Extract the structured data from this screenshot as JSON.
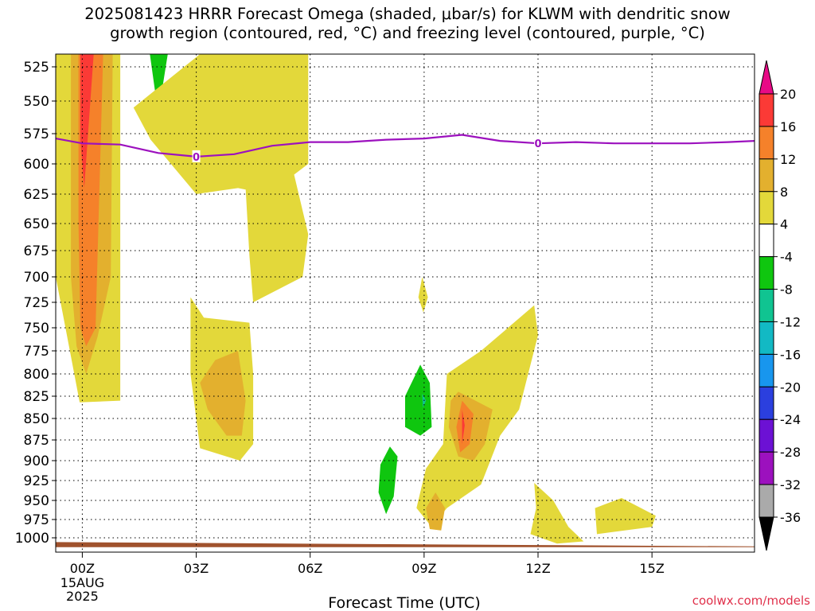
{
  "chart_data": {
    "type": "heatmap",
    "title_lines": [
      "2025081423 HRRR Forecast Omega (shaded, μbar/s) for KLWM with dendritic snow",
      "growth region (contoured, red, °C) and freezing level (contoured, purple, °C)"
    ],
    "xlabel": "Forecast Time (UTC)",
    "xlim": [
      -0.7,
      17.7
    ],
    "x_ticks": [
      0,
      3,
      6,
      9,
      12,
      15
    ],
    "x_tick_labels": [
      "00Z",
      "03Z",
      "06Z",
      "09Z",
      "12Z",
      "15Z"
    ],
    "x_date_label": [
      "15AUG",
      "2025"
    ],
    "y_ticks": [
      525,
      550,
      575,
      600,
      625,
      650,
      675,
      700,
      725,
      750,
      775,
      800,
      825,
      850,
      875,
      900,
      925,
      950,
      975,
      1000
    ],
    "y_tick_labels": [
      "525",
      "550",
      "575",
      "600",
      "625",
      "650",
      "675",
      "700",
      "725",
      "750",
      "775",
      "800",
      "825",
      "850",
      "875",
      "900",
      "925",
      "950",
      "975",
      "1000"
    ],
    "ylim": [
      1020,
      510
    ],
    "grid": true,
    "colorbar": {
      "labels": [
        "20",
        "16",
        "12",
        "8",
        "4",
        "-4",
        "-8",
        "-12",
        "-16",
        "-20",
        "-24",
        "-28",
        "-32",
        "-36"
      ],
      "colors": [
        "#e80a86",
        "#fb3a36",
        "#f5812a",
        "#e3b02e",
        "#e3d83a",
        "#ffffff",
        "#0fc60f",
        "#10c491",
        "#12b9c4",
        "#1896ee",
        "#2b3fde",
        "#6c11d4",
        "#9c11be",
        "#aaaaaa",
        "#000000"
      ]
    },
    "freezing_level": {
      "label": "0",
      "color": "#9c11be",
      "x": [
        -0.7,
        0,
        1,
        2,
        3,
        4,
        5,
        6,
        7,
        8,
        9,
        10,
        11,
        12,
        13,
        14,
        15,
        16,
        17,
        17.7
      ],
      "p": [
        579,
        583,
        584,
        591,
        594,
        592,
        585,
        582,
        582,
        580,
        579,
        576,
        581,
        583,
        582,
        583,
        583,
        583,
        582,
        581
      ]
    },
    "terrain": {
      "color": "#a0522d",
      "x": [
        -0.7,
        17.7
      ],
      "p": [
        1006,
        1012
      ],
      "base": 1013
    },
    "shaded_regions": [
      {
        "level": "4 to 8",
        "color": "#e3d83a",
        "points": [
          [
            -0.7,
            510
          ],
          [
            1,
            510
          ],
          [
            1,
            830
          ],
          [
            -0.07,
            832
          ],
          [
            -0.35,
            770
          ],
          [
            -0.7,
            700
          ]
        ]
      },
      {
        "level": "8 to 12",
        "color": "#e3b02e",
        "points": [
          [
            -0.3,
            510
          ],
          [
            0.8,
            510
          ],
          [
            0.75,
            700
          ],
          [
            0.4,
            760
          ],
          [
            0.1,
            800
          ],
          [
            -0.15,
            770
          ],
          [
            -0.3,
            700
          ]
        ]
      },
      {
        "level": "12 to 16",
        "color": "#f5812a",
        "points": [
          [
            -0.1,
            510
          ],
          [
            0.55,
            510
          ],
          [
            0.35,
            750
          ],
          [
            0.1,
            770
          ],
          [
            -0.05,
            750
          ],
          [
            -0.1,
            650
          ]
        ]
      },
      {
        "level": "16 to 20",
        "color": "#fb3a36",
        "points": [
          [
            -0.05,
            510
          ],
          [
            0.3,
            510
          ],
          [
            0.05,
            620
          ],
          [
            -0.05,
            580
          ]
        ]
      },
      {
        "level": "-4 to -8",
        "color": "#0fc60f",
        "points": [
          [
            1.78,
            510
          ],
          [
            2.25,
            510
          ],
          [
            2.0,
            560
          ]
        ]
      },
      {
        "level": "4 to 8",
        "color": "#e3d83a",
        "points": [
          [
            1.35,
            555
          ],
          [
            3.1,
            510
          ],
          [
            4.7,
            510
          ],
          [
            5.95,
            510
          ],
          [
            5.95,
            600
          ],
          [
            4.9,
            625
          ],
          [
            4.1,
            620
          ],
          [
            3.0,
            625
          ],
          [
            1.8,
            580
          ]
        ]
      },
      {
        "level": "4 to 8",
        "color": "#e3d83a",
        "points": [
          [
            3.7,
            578
          ],
          [
            4.5,
            520
          ],
          [
            5.2,
            560
          ],
          [
            5.95,
            660
          ],
          [
            5.8,
            700
          ],
          [
            4.5,
            725
          ],
          [
            4.4,
            680
          ],
          [
            4.3,
            620
          ],
          [
            4.25,
            560
          ]
        ]
      },
      {
        "level": "4 to 8",
        "color": "#e3d83a",
        "points": [
          [
            2.85,
            720
          ],
          [
            3.2,
            740
          ],
          [
            4.4,
            745
          ],
          [
            4.5,
            800
          ],
          [
            4.5,
            880
          ],
          [
            4.15,
            900
          ],
          [
            3.1,
            885
          ],
          [
            2.85,
            800
          ]
        ]
      },
      {
        "level": "8 to 12",
        "color": "#e3b02e",
        "points": [
          [
            3.1,
            810
          ],
          [
            3.5,
            785
          ],
          [
            4.1,
            775
          ],
          [
            4.3,
            830
          ],
          [
            4.2,
            870
          ],
          [
            3.8,
            870
          ],
          [
            3.3,
            840
          ]
        ]
      },
      {
        "level": "4 to 8",
        "color": "#e3d83a",
        "points": [
          [
            8.95,
            700
          ],
          [
            9.1,
            720
          ],
          [
            8.98,
            735
          ],
          [
            8.85,
            720
          ]
        ]
      },
      {
        "level": "-4 to -8",
        "color": "#0fc60f",
        "points": [
          [
            8.9,
            790
          ],
          [
            9.15,
            810
          ],
          [
            9.2,
            860
          ],
          [
            8.9,
            870
          ],
          [
            8.5,
            860
          ],
          [
            8.5,
            825
          ]
        ]
      },
      {
        "level": "-8 to -12",
        "color": "#10c491",
        "points": [
          [
            8.95,
            822
          ],
          [
            9.05,
            830
          ],
          [
            8.97,
            838
          ]
        ]
      },
      {
        "level": "-4 to -8",
        "color": "#0fc60f",
        "points": [
          [
            8.1,
            883
          ],
          [
            8.3,
            895
          ],
          [
            8.2,
            945
          ],
          [
            8.0,
            968
          ],
          [
            7.8,
            940
          ],
          [
            7.85,
            905
          ]
        ]
      },
      {
        "level": "4 to 8",
        "color": "#e3d83a",
        "points": [
          [
            9.6,
            800
          ],
          [
            10.5,
            775
          ],
          [
            11.9,
            728
          ],
          [
            12.0,
            758
          ],
          [
            11.5,
            840
          ],
          [
            11.0,
            870
          ],
          [
            10.5,
            930
          ],
          [
            9.6,
            960
          ],
          [
            9.2,
            985
          ],
          [
            8.8,
            960
          ],
          [
            9.05,
            910
          ],
          [
            9.5,
            880
          ]
        ]
      },
      {
        "level": "8 to 12",
        "color": "#e3b02e",
        "points": [
          [
            9.9,
            820
          ],
          [
            10.8,
            840
          ],
          [
            10.6,
            880
          ],
          [
            10.3,
            900
          ],
          [
            9.9,
            895
          ],
          [
            9.65,
            860
          ],
          [
            9.7,
            830
          ]
        ]
      },
      {
        "level": "12 to 16",
        "color": "#f5812a",
        "points": [
          [
            10.0,
            830
          ],
          [
            10.3,
            845
          ],
          [
            10.2,
            880
          ],
          [
            9.95,
            890
          ],
          [
            9.85,
            860
          ]
        ]
      },
      {
        "level": "16 to 20",
        "color": "#fb3a36",
        "points": [
          [
            10.0,
            840
          ],
          [
            10.07,
            858
          ],
          [
            10.0,
            880
          ]
        ]
      },
      {
        "level": "8 to 12",
        "color": "#e3b02e",
        "points": [
          [
            9.3,
            940
          ],
          [
            9.55,
            960
          ],
          [
            9.45,
            990
          ],
          [
            9.15,
            988
          ],
          [
            9.05,
            960
          ]
        ]
      },
      {
        "level": "4 to 8",
        "color": "#e3d83a",
        "points": [
          [
            11.9,
            928
          ],
          [
            12.4,
            950
          ],
          [
            12.8,
            985
          ],
          [
            13.2,
            1005
          ],
          [
            12.5,
            1008
          ],
          [
            11.8,
            995
          ],
          [
            11.95,
            960
          ]
        ]
      },
      {
        "level": "4 to 8",
        "color": "#e3d83a",
        "points": [
          [
            13.5,
            960
          ],
          [
            14.2,
            947
          ],
          [
            15.1,
            970
          ],
          [
            15.0,
            985
          ],
          [
            13.55,
            995
          ]
        ]
      }
    ]
  },
  "credit": "coolwx.com/models"
}
